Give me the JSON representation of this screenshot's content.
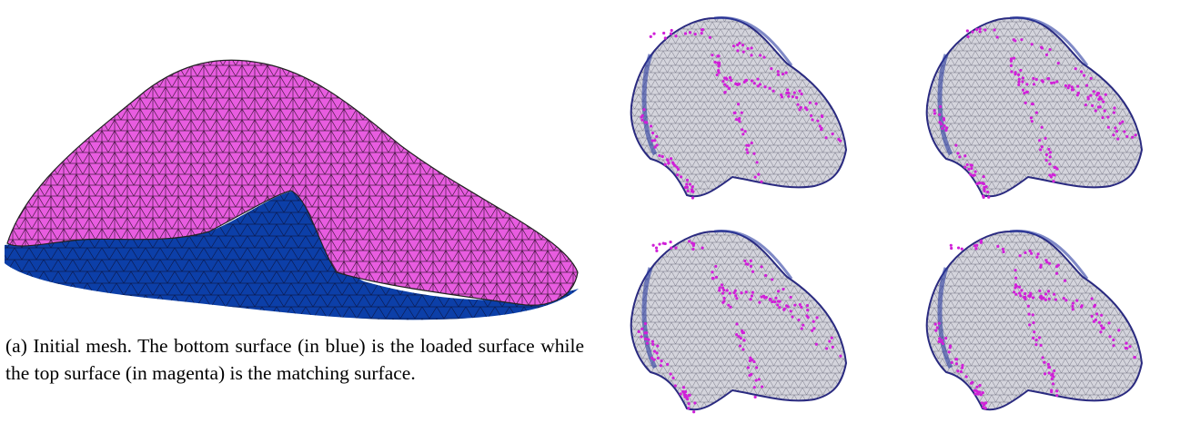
{
  "figure": {
    "caption": "(a) Initial mesh. The bottom surface (in blue) is the loaded surface while the top surface (in magenta) is the matching surface."
  }
}
